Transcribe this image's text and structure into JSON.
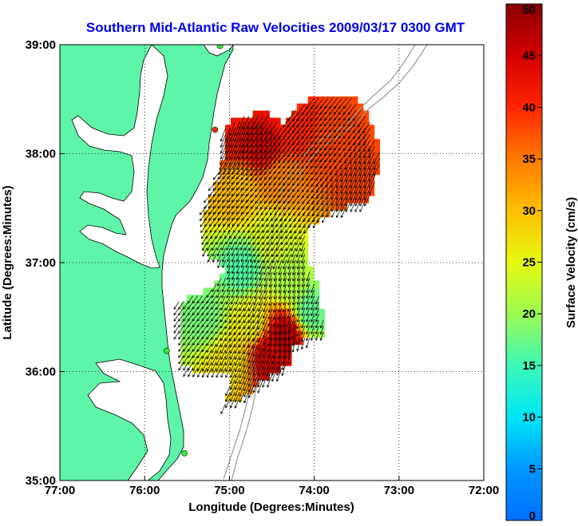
{
  "chart_data": {
    "type": "heatmap",
    "title": "Southern Mid-Atlantic Raw Velocities 2009/03/17 0300 GMT",
    "xlabel": "Longitude (Degrees:Minutes)",
    "ylabel": "Latitude (Degrees:Minutes)",
    "xlim": [
      -77,
      -72
    ],
    "ylim": [
      35,
      39
    ],
    "x_ticks": [
      {
        "value": -77,
        "label": "77:00"
      },
      {
        "value": -76,
        "label": "76:00"
      },
      {
        "value": -75,
        "label": "75:00"
      },
      {
        "value": -74,
        "label": "74:00"
      },
      {
        "value": -73,
        "label": "73:00"
      },
      {
        "value": -72,
        "label": "72:00"
      }
    ],
    "y_ticks": [
      {
        "value": 35,
        "label": "35:00"
      },
      {
        "value": 36,
        "label": "36:00"
      },
      {
        "value": 37,
        "label": "37:00"
      },
      {
        "value": 38,
        "label": "38:00"
      },
      {
        "value": 39,
        "label": "39:00"
      }
    ],
    "grid": true,
    "colorbar": {
      "label": "Surface Velocity (cm/s)",
      "min": 0,
      "max": 50,
      "ticks": [
        0,
        5,
        10,
        15,
        20,
        25,
        30,
        35,
        40,
        45,
        50
      ],
      "position": "right"
    },
    "land_color": "#5ef5a8",
    "stations": [
      {
        "lon": -75.11,
        "lat": 38.99
      },
      {
        "lon": -75.17,
        "lat": 38.22
      },
      {
        "lon": -75.74,
        "lat": 36.19
      },
      {
        "lon": -75.53,
        "lat": 35.25
      }
    ],
    "velocity_field": [
      {
        "lon": -74.95,
        "lat": 38.2,
        "speed": 42,
        "dir": 200
      },
      {
        "lon": -74.6,
        "lat": 38.1,
        "speed": 44,
        "dir": 210
      },
      {
        "lon": -74.2,
        "lat": 38.25,
        "speed": 40,
        "dir": 215
      },
      {
        "lon": -73.8,
        "lat": 38.15,
        "speed": 38,
        "dir": 220
      },
      {
        "lon": -73.45,
        "lat": 37.8,
        "speed": 38,
        "dir": 205
      },
      {
        "lon": -74.4,
        "lat": 37.75,
        "speed": 34,
        "dir": 220
      },
      {
        "lon": -74.9,
        "lat": 37.65,
        "speed": 30,
        "dir": 225
      },
      {
        "lon": -74.5,
        "lat": 37.25,
        "speed": 24,
        "dir": 210
      },
      {
        "lon": -74.85,
        "lat": 36.95,
        "speed": 16,
        "dir": 200
      },
      {
        "lon": -74.3,
        "lat": 36.85,
        "speed": 21,
        "dir": 195
      },
      {
        "lon": -74.05,
        "lat": 36.55,
        "speed": 17,
        "dir": 200
      },
      {
        "lon": -74.75,
        "lat": 36.45,
        "speed": 26,
        "dir": 210
      },
      {
        "lon": -75.3,
        "lat": 36.5,
        "speed": 18,
        "dir": 215
      },
      {
        "lon": -74.55,
        "lat": 36.15,
        "speed": 44,
        "dir": 200
      },
      {
        "lon": -74.35,
        "lat": 36.35,
        "speed": 46,
        "dir": 190
      },
      {
        "lon": -75.0,
        "lat": 36.1,
        "speed": 27,
        "dir": 205
      }
    ]
  }
}
